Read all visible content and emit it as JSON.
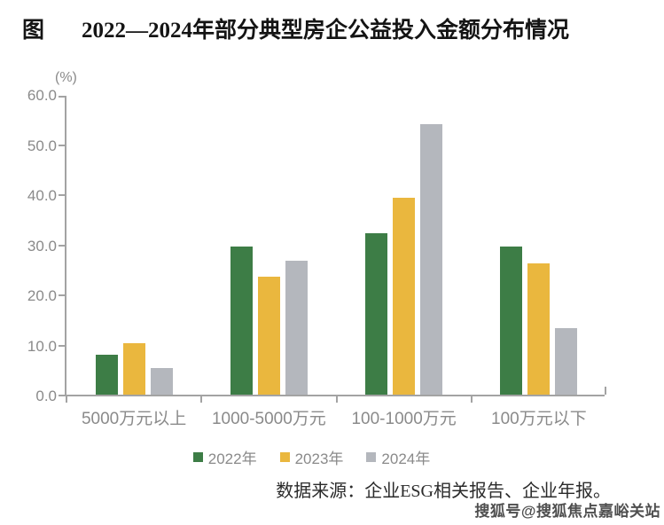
{
  "title": {
    "prefix": "图",
    "text": "2022—2024年部分典型房企公益投入金额分布情况"
  },
  "chart_data": {
    "type": "bar",
    "title": "2022—2024年部分典型房企公益投入金额分布情况",
    "unit_label": "(%)",
    "xlabel": "",
    "ylabel": "(%)",
    "ylim": [
      0,
      60
    ],
    "ytick_step": 10,
    "ytick_labels": [
      "0.0",
      "10.0",
      "20.0",
      "30.0",
      "40.0",
      "50.0",
      "60.0"
    ],
    "grid": false,
    "legend_position": "bottom",
    "categories": [
      "5000万元以上",
      "1000-5000万元",
      "100-1000万元",
      "100万元以下"
    ],
    "series": [
      {
        "name": "2022年",
        "color": "#3D7D46",
        "values": [
          8.0,
          29.5,
          32.3,
          29.5
        ]
      },
      {
        "name": "2023年",
        "color": "#EAB73E",
        "values": [
          10.3,
          23.6,
          39.3,
          26.2
        ]
      },
      {
        "name": "2024年",
        "color": "#B4B7BD",
        "values": [
          5.3,
          26.8,
          53.9,
          13.3
        ]
      }
    ]
  },
  "footer": {
    "source": "数据来源：企业ESG相关报告、企业年报。"
  },
  "watermark": "搜狐号@搜狐焦点嘉峪关站",
  "colors": {
    "axis": "#a3a3a3",
    "tick_label": "#8a8a8a",
    "title": "#141414",
    "footer": "#2b2b2b",
    "watermark": "#4f4f4f"
  }
}
